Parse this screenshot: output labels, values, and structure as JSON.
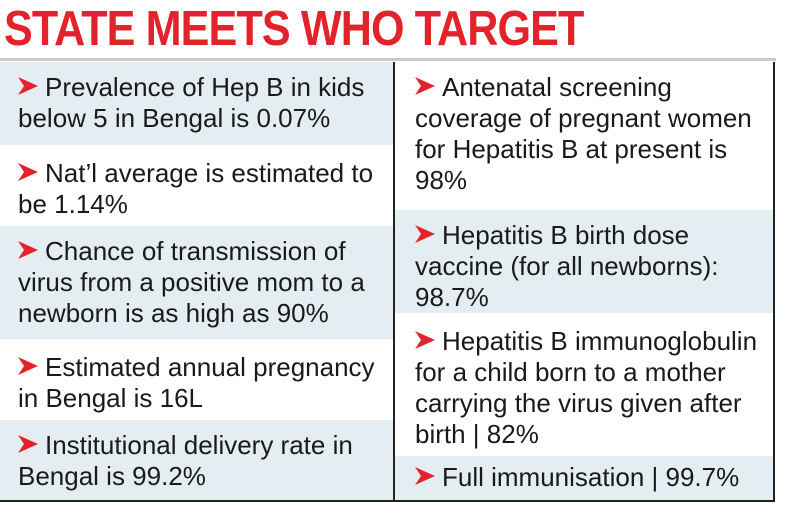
{
  "headline": "STATE MEETS WHO TARGET",
  "colors": {
    "headline": "#e3232c",
    "arrow": "#e3232c",
    "shaded_cell": "#e4edf1",
    "text": "#1a1a1a"
  },
  "left_column": [
    {
      "text": "Prevalence of Hep B in kids below 5 in Bengal is 0.07%",
      "icon": "arrow-bullet-icon"
    },
    {
      "text": "Nat’l average is estimated to be 1.14%",
      "icon": "arrow-bullet-icon"
    },
    {
      "text": "Chance of transmission of virus from a positive mom to a newborn is as high as 90%",
      "icon": "arrow-bullet-icon"
    },
    {
      "text": "Estimated annual pregnancy in Bengal is 16L",
      "icon": "arrow-bullet-icon"
    },
    {
      "text": "Institutional delivery rate in Bengal is 99.2%",
      "icon": "arrow-bullet-icon"
    }
  ],
  "right_column": [
    {
      "text": "Antenatal screening coverage of pregnant women for Hepatitis B at present is 98%",
      "icon": "arrow-bullet-icon"
    },
    {
      "text": "Hepatitis B birth dose vaccine (for all newborns): 98.7%",
      "icon": "arrow-bullet-icon"
    },
    {
      "text": "Hepatitis B immunoglobulin for a child born to a mother carrying the virus given after birth | 82%",
      "icon": "arrow-bullet-icon"
    },
    {
      "text": "Full immunisation | 99.7%",
      "icon": "arrow-bullet-icon"
    }
  ]
}
